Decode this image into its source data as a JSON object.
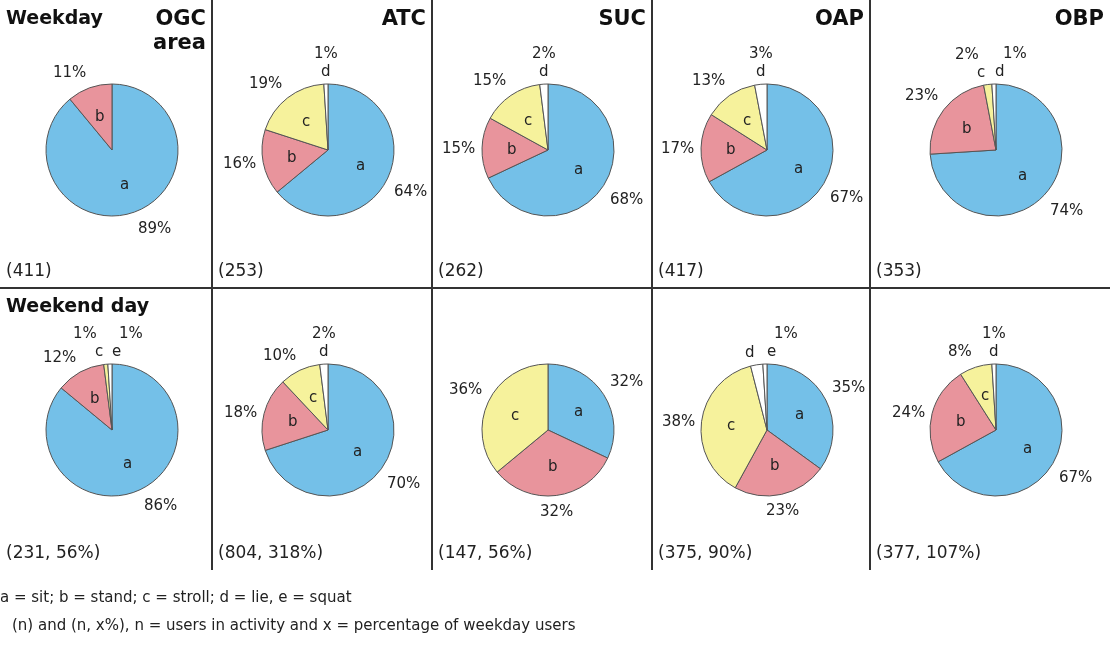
{
  "chart_data": [
    {
      "type": "pie",
      "subtitle": "Weekday",
      "title": "OGC area",
      "categories": [
        "a",
        "b"
      ],
      "values": [
        89,
        11
      ],
      "colors": [
        "#74c0e8",
        "#e8949c"
      ],
      "value_labels": [
        "89%",
        "11%"
      ],
      "annotations": [
        "(411)"
      ]
    },
    {
      "type": "pie",
      "title": "ATC",
      "categories": [
        "a",
        "b",
        "c",
        "d"
      ],
      "values": [
        64,
        16,
        19,
        1
      ],
      "colors": [
        "#74c0e8",
        "#e8949c",
        "#f6f29c",
        "#ffffff"
      ],
      "value_labels": [
        "64%",
        "16%",
        "19%",
        "1%"
      ],
      "annotations": [
        "(253)"
      ]
    },
    {
      "type": "pie",
      "title": "SUC",
      "categories": [
        "a",
        "b",
        "c",
        "d"
      ],
      "values": [
        68,
        15,
        15,
        2
      ],
      "colors": [
        "#74c0e8",
        "#e8949c",
        "#f6f29c",
        "#ffffff"
      ],
      "value_labels": [
        "68%",
        "15%",
        "15%",
        "2%"
      ],
      "annotations": [
        "(262)"
      ]
    },
    {
      "type": "pie",
      "title": "OAP",
      "categories": [
        "a",
        "b",
        "c",
        "d"
      ],
      "values": [
        67,
        17,
        13,
        3
      ],
      "colors": [
        "#74c0e8",
        "#e8949c",
        "#f6f29c",
        "#ffffff"
      ],
      "value_labels": [
        "67%",
        "17%",
        "13%",
        "3%"
      ],
      "annotations": [
        "(417)"
      ]
    },
    {
      "type": "pie",
      "title": "OBP",
      "categories": [
        "a",
        "b",
        "c",
        "d"
      ],
      "values": [
        74,
        23,
        2,
        1
      ],
      "colors": [
        "#74c0e8",
        "#e8949c",
        "#f6f29c",
        "#ffffff"
      ],
      "value_labels": [
        "74%",
        "23%",
        "2%",
        "1%"
      ],
      "annotations": [
        "(353)"
      ]
    },
    {
      "type": "pie",
      "subtitle": "Weekend day",
      "categories": [
        "a",
        "b",
        "c",
        "e"
      ],
      "values": [
        86,
        12,
        1,
        1
      ],
      "colors": [
        "#74c0e8",
        "#e8949c",
        "#f6f29c",
        "#ffffff"
      ],
      "value_labels": [
        "86%",
        "12%",
        "1%",
        "1%"
      ],
      "annotations": [
        "(231, 56%)"
      ]
    },
    {
      "type": "pie",
      "categories": [
        "a",
        "b",
        "c",
        "d"
      ],
      "values": [
        70,
        18,
        10,
        2
      ],
      "colors": [
        "#74c0e8",
        "#e8949c",
        "#f6f29c",
        "#ffffff"
      ],
      "value_labels": [
        "70%",
        "18%",
        "10%",
        "2%"
      ],
      "annotations": [
        "(804, 318%)"
      ]
    },
    {
      "type": "pie",
      "categories": [
        "a",
        "b",
        "c"
      ],
      "values": [
        32,
        32,
        36
      ],
      "colors": [
        "#74c0e8",
        "#e8949c",
        "#f6f29c"
      ],
      "value_labels": [
        "32%",
        "32%",
        "36%"
      ],
      "annotations": [
        "(147, 56%)"
      ]
    },
    {
      "type": "pie",
      "categories": [
        "a",
        "b",
        "c",
        "d",
        "e"
      ],
      "values": [
        35,
        23,
        38,
        3,
        1
      ],
      "colors": [
        "#74c0e8",
        "#e8949c",
        "#f6f29c",
        "#ffffff",
        "#ffffff"
      ],
      "value_labels": [
        "35%",
        "23%",
        "38%",
        null,
        "1%"
      ],
      "annotations": [
        "(375, 90%)"
      ]
    },
    {
      "type": "pie",
      "categories": [
        "a",
        "b",
        "c",
        "d"
      ],
      "values": [
        67,
        24,
        8,
        1
      ],
      "colors": [
        "#74c0e8",
        "#e8949c",
        "#f6f29c",
        "#ffffff"
      ],
      "value_labels": [
        "67%",
        "24%",
        "8%",
        "1%"
      ],
      "annotations": [
        "(377, 107%)"
      ]
    },
    {
      "type": "other",
      "annotations": [
        "a = sit; b = stand; c = stroll; d = lie, e = squat",
        "(n) and (n, x%), n = users in activity and x = percentage of weekday users"
      ]
    }
  ]
}
